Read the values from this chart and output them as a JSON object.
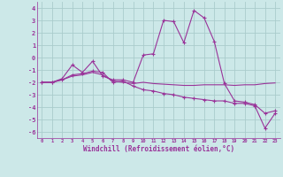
{
  "xlabel": "Windchill (Refroidissement éolien,°C)",
  "background_color": "#cce8e8",
  "line_color": "#993399",
  "grid_color": "#aacccc",
  "x_values": [
    0,
    1,
    2,
    3,
    4,
    5,
    6,
    7,
    8,
    9,
    10,
    11,
    12,
    13,
    14,
    15,
    16,
    17,
    18,
    19,
    20,
    21,
    22,
    23
  ],
  "line1_y": [
    -2.0,
    -2.0,
    -1.7,
    -0.6,
    -1.2,
    -0.3,
    -1.5,
    -1.8,
    -1.8,
    -2.0,
    0.2,
    0.3,
    3.0,
    2.9,
    1.2,
    3.8,
    3.2,
    1.3,
    -2.1,
    -3.5,
    -3.6,
    -3.8,
    -4.5,
    -4.3
  ],
  "line2_y": [
    -2.0,
    -2.0,
    -1.8,
    -1.5,
    -1.4,
    -1.2,
    -1.4,
    -1.9,
    -2.0,
    -2.1,
    -2.0,
    -2.1,
    -2.15,
    -2.2,
    -2.25,
    -2.25,
    -2.2,
    -2.2,
    -2.2,
    -2.25,
    -2.2,
    -2.2,
    -2.1,
    -2.05
  ],
  "line3_y": [
    -2.0,
    -2.0,
    -1.8,
    -1.4,
    -1.3,
    -1.1,
    -1.2,
    -2.0,
    -1.9,
    -2.3,
    -2.6,
    -2.7,
    -2.9,
    -3.0,
    -3.2,
    -3.3,
    -3.4,
    -3.5,
    -3.5,
    -3.7,
    -3.7,
    -3.9,
    -5.7,
    -4.5
  ],
  "ylim": [
    -6.5,
    4.5
  ],
  "yticks": [
    -6,
    -5,
    -4,
    -3,
    -2,
    -1,
    0,
    1,
    2,
    3,
    4
  ],
  "xlim": [
    -0.5,
    23.5
  ],
  "xticks": [
    0,
    1,
    2,
    3,
    4,
    5,
    6,
    7,
    8,
    9,
    10,
    11,
    12,
    13,
    14,
    15,
    16,
    17,
    18,
    19,
    20,
    21,
    22,
    23
  ],
  "figsize": [
    3.2,
    2.0
  ],
  "dpi": 100
}
